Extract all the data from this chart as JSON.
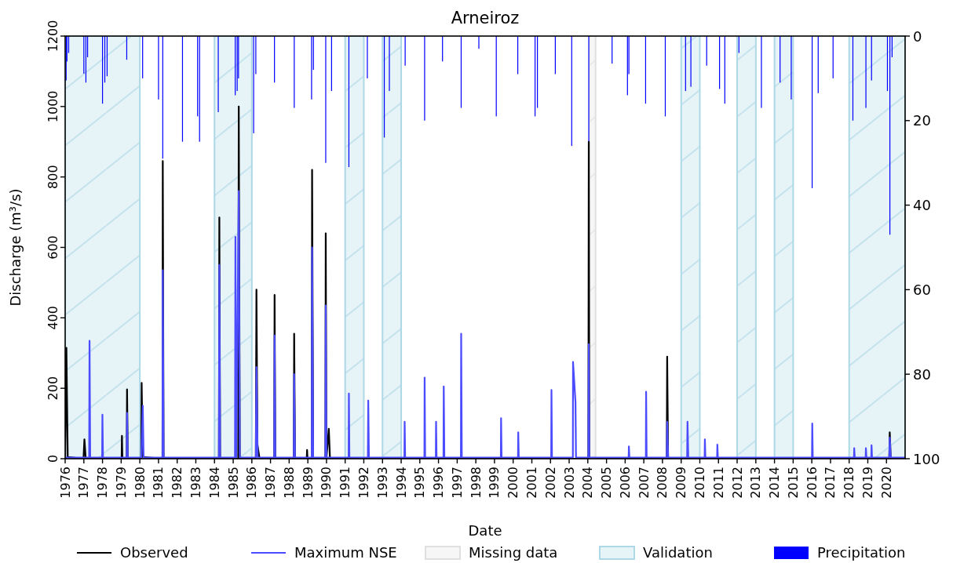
{
  "chart_data": {
    "type": "line",
    "title": "Arneiroz",
    "xlabel": "Date",
    "ylabel": "Discharge (m³/s)",
    "xlim": [
      "1976-01-01",
      "2020-12-31"
    ],
    "xticks": [
      {
        "value": "1976-01-01",
        "label": "1976"
      },
      {
        "value": "1977-01-01",
        "label": "1977"
      },
      {
        "value": "1978-01-01",
        "label": "1978"
      },
      {
        "value": "1979-01-01",
        "label": "1979"
      },
      {
        "value": "1980-01-01",
        "label": "1980"
      },
      {
        "value": "1981-01-01",
        "label": "1981"
      },
      {
        "value": "1982-01-01",
        "label": "1982"
      },
      {
        "value": "1983-01-01",
        "label": "1983"
      },
      {
        "value": "1984-01-01",
        "label": "1984"
      },
      {
        "value": "1985-01-01",
        "label": "1985"
      },
      {
        "value": "1986-01-01",
        "label": "1986"
      },
      {
        "value": "1987-01-01",
        "label": "1987"
      },
      {
        "value": "1988-01-01",
        "label": "1988"
      },
      {
        "value": "1989-01-01",
        "label": "1989"
      },
      {
        "value": "1990-01-01",
        "label": "1990"
      },
      {
        "value": "1991-01-01",
        "label": "1991"
      },
      {
        "value": "1992-01-01",
        "label": "1992"
      },
      {
        "value": "1993-01-01",
        "label": "1993"
      },
      {
        "value": "1994-01-01",
        "label": "1994"
      },
      {
        "value": "1995-01-01",
        "label": "1995"
      },
      {
        "value": "1996-01-01",
        "label": "1996"
      },
      {
        "value": "1997-01-01",
        "label": "1997"
      },
      {
        "value": "1998-01-01",
        "label": "1998"
      },
      {
        "value": "1999-01-01",
        "label": "1999"
      },
      {
        "value": "2000-01-01",
        "label": "2000"
      },
      {
        "value": "2001-01-01",
        "label": "2001"
      },
      {
        "value": "2002-01-01",
        "label": "2002"
      },
      {
        "value": "2003-01-01",
        "label": "2003"
      },
      {
        "value": "2004-01-01",
        "label": "2004"
      },
      {
        "value": "2005-01-01",
        "label": "2005"
      },
      {
        "value": "2006-01-01",
        "label": "2006"
      },
      {
        "value": "2007-01-01",
        "label": "2007"
      },
      {
        "value": "2008-01-01",
        "label": "2008"
      },
      {
        "value": "2009-01-01",
        "label": "2009"
      },
      {
        "value": "2010-01-01",
        "label": "2010"
      },
      {
        "value": "2011-01-01",
        "label": "2011"
      },
      {
        "value": "2012-01-01",
        "label": "2012"
      },
      {
        "value": "2013-01-01",
        "label": "2013"
      },
      {
        "value": "2014-01-01",
        "label": "2014"
      },
      {
        "value": "2015-01-01",
        "label": "2015"
      },
      {
        "value": "2016-01-01",
        "label": "2016"
      },
      {
        "value": "2017-01-01",
        "label": "2017"
      },
      {
        "value": "2018-01-01",
        "label": "2018"
      },
      {
        "value": "2019-01-01",
        "label": "2019"
      },
      {
        "value": "2020-01-01",
        "label": "2020"
      }
    ],
    "ylim": [
      0,
      1200
    ],
    "yticks": [
      0,
      200,
      400,
      600,
      800,
      1000,
      1200
    ],
    "y2lim": [
      100,
      0
    ],
    "y2ticks": [
      0,
      20,
      40,
      60,
      80,
      100
    ],
    "legend": "bottom",
    "bands": [
      {
        "axis": "x",
        "from": "2004-02-01",
        "to": "2004-06-01",
        "label": "Missing data",
        "color": "#e0e0e0"
      },
      {
        "axis": "x",
        "from": "1976-01-01",
        "to": "1980-01-01",
        "label": "Validation",
        "color": "#add8e6"
      },
      {
        "axis": "x",
        "from": "1984-01-01",
        "to": "1986-01-01",
        "color": "#add8e6"
      },
      {
        "axis": "x",
        "from": "1991-01-01",
        "to": "1992-01-01",
        "color": "#add8e6"
      },
      {
        "axis": "x",
        "from": "1993-01-01",
        "to": "1994-01-01",
        "color": "#add8e6"
      },
      {
        "axis": "x",
        "from": "2009-01-01",
        "to": "2010-01-01",
        "color": "#add8e6"
      },
      {
        "axis": "x",
        "from": "2012-01-01",
        "to": "2013-01-01",
        "color": "#add8e6"
      },
      {
        "axis": "x",
        "from": "2014-01-01",
        "to": "2015-01-01",
        "color": "#add8e6"
      },
      {
        "axis": "x",
        "from": "2018-01-01",
        "to": "2020-12-31",
        "color": "#add8e6"
      }
    ],
    "series": [
      {
        "name": "Precipitation",
        "type": "bar",
        "axis": "y2",
        "color": "#0000ff",
        "x": [
          "1976-01-20",
          "1976-02-05",
          "1976-03-10",
          "1977-01-01",
          "1977-02-10",
          "1977-03-15",
          "1978-01-01",
          "1978-02-15",
          "1978-04-01",
          "1979-04-20",
          "1980-02-25",
          "1981-01-01",
          "1981-03-25",
          "1982-04-15",
          "1983-02-05",
          "1983-03-15",
          "1984-03-15",
          "1985-02-10",
          "1985-03-20",
          "1985-04-15",
          "1986-02-05",
          "1986-03-20",
          "1987-03-20",
          "1988-04-10",
          "1989-03-15",
          "1989-04-20",
          "1989-12-17",
          "1990-04-10",
          "1991-03-15",
          "1992-03-10",
          "1993-02-05",
          "1993-05-15",
          "1994-03-20",
          "1995-04-05",
          "1996-03-20",
          "1997-03-20",
          "1998-03-01",
          "1999-02-05",
          "2000-04-01",
          "2001-03-05",
          "2001-04-20",
          "2002-04-05",
          "2003-02-20",
          "2004-01-20",
          "2005-04-20",
          "2006-02-15",
          "2006-03-15",
          "2007-02-05",
          "2008-02-25",
          "2009-03-28",
          "2009-07-10",
          "2010-05-15",
          "2011-01-22",
          "2011-05-05",
          "2012-02-05",
          "2013-04-20",
          "2014-04-20",
          "2014-11-25",
          "2016-01-08",
          "2016-05-05",
          "2017-02-20",
          "2018-03-15",
          "2018-11-25",
          "2019-03-15",
          "2020-01-20",
          "2020-03-08",
          "2020-04-20"
        ],
        "values": [
          10.5,
          6,
          4,
          8.9,
          11,
          5,
          16,
          11,
          9.5,
          5.6,
          10,
          15,
          29,
          25,
          19,
          25,
          18,
          14,
          13,
          10,
          23,
          9,
          11,
          17,
          15,
          8,
          30,
          13,
          31,
          10,
          24,
          13,
          7,
          20,
          6,
          17,
          3,
          19,
          9,
          19,
          17,
          9,
          26,
          25,
          6.5,
          14,
          9,
          16,
          19,
          13,
          12,
          7,
          12.5,
          16,
          4,
          17,
          11,
          15,
          36,
          13.5,
          10,
          20,
          17,
          10.5,
          13,
          47,
          5
        ]
      },
      {
        "name": "Observed",
        "color": "#000000",
        "x": [
          "1976-01-01",
          "1976-01-25",
          "1976-02-20",
          "1976-12-25",
          "1977-01-12",
          "1977-02-05",
          "1979-01-10",
          "1979-01-16",
          "1979-01-25",
          "1979-04-20",
          "1979-04-26",
          "1979-05-10",
          "1980-01-28",
          "1980-02-06",
          "1980-02-25",
          "1981-03-20",
          "1981-03-25",
          "1981-04-10",
          "1984-03-28",
          "1984-04-05",
          "1984-04-20",
          "1985-04-10",
          "1985-04-20",
          "1985-05-10",
          "1986-03-20",
          "1986-04-01",
          "1986-04-20",
          "1986-06-01",
          "1987-03-15",
          "1987-03-22",
          "1987-04-05",
          "1988-04-01",
          "1988-04-08",
          "1988-04-25",
          "1988-12-10",
          "1988-12-17",
          "1988-12-25",
          "1989-03-18",
          "1989-03-25",
          "1989-04-15",
          "1989-12-10",
          "1989-12-17",
          "1989-12-30",
          "1990-02-15",
          "1990-03-10",
          "2004-01-12",
          "2004-01-20",
          "2004-01-30",
          "2004-03-01",
          "2004-06-01",
          "2008-03-25",
          "2008-04-02",
          "2008-04-20",
          "2020-02-25",
          "2020-03-05",
          "2020-03-25",
          "2020-12-31"
        ],
        "values": [
          0,
          315,
          5,
          0,
          55,
          2,
          0,
          65,
          0,
          0,
          197,
          0,
          0,
          215,
          5,
          0,
          845,
          0,
          0,
          685,
          0,
          0,
          1000,
          0,
          0,
          480,
          40,
          0,
          0,
          465,
          0,
          0,
          355,
          0,
          0,
          25,
          0,
          0,
          820,
          0,
          0,
          640,
          0,
          85,
          0,
          0,
          900,
          0,
          null,
          0,
          0,
          290,
          0,
          0,
          75,
          0,
          0
        ]
      },
      {
        "name": "Maximum NSE",
        "color": "#4b4bff",
        "x": [
          "1976-01-01",
          "1977-04-15",
          "1977-04-22",
          "1977-05-05",
          "1977-12-25",
          "1977-12-30",
          "1978-01-10",
          "1979-04-20",
          "1979-04-26",
          "1979-05-10",
          "1980-01-30",
          "1980-02-28",
          "1980-03-15",
          "1981-03-20",
          "1981-03-25",
          "1981-04-10",
          "1984-03-28",
          "1984-04-05",
          "1984-04-20",
          "1985-02-05",
          "1985-02-14",
          "1985-03-01",
          "1985-04-20",
          "1985-05-10",
          "1986-03-20",
          "1986-04-01",
          "1986-04-25",
          "1987-03-15",
          "1987-03-22",
          "1987-04-05",
          "1988-04-01",
          "1988-04-08",
          "1988-04-25",
          "1989-03-18",
          "1989-03-25",
          "1989-04-15",
          "1989-12-10",
          "1989-12-17",
          "1989-12-30",
          "1991-03-10",
          "1991-03-15",
          "1991-03-25",
          "1992-03-20",
          "1992-03-28",
          "1992-04-10",
          "1994-03-05",
          "1994-03-10",
          "1994-03-20",
          "1995-04-01",
          "1995-04-05",
          "1995-04-15",
          "1995-11-10",
          "1995-11-15",
          "1995-11-25",
          "1996-04-08",
          "1996-04-13",
          "1996-04-25",
          "1997-03-15",
          "1997-03-20",
          "1997-04-01",
          "1999-05-05",
          "1999-05-10",
          "1999-05-20",
          "2000-04-05",
          "2000-04-10",
          "2000-04-20",
          "2002-01-15",
          "2002-01-20",
          "2002-01-30",
          "2003-03-15",
          "2003-03-18",
          "2003-05-05",
          "2003-05-15",
          "2004-01-12",
          "2004-01-20",
          "2004-01-30",
          "2006-03-10",
          "2006-03-15",
          "2006-03-25",
          "2007-02-10",
          "2007-02-15",
          "2007-02-25",
          "2008-03-25",
          "2008-04-02",
          "2008-04-20",
          "2009-04-28",
          "2009-05-05",
          "2009-05-20",
          "2010-04-05",
          "2010-04-10",
          "2010-04-20",
          "2010-12-05",
          "2010-12-10",
          "2010-12-20",
          "2016-01-05",
          "2016-01-10",
          "2016-01-20",
          "2018-04-05",
          "2018-04-10",
          "2018-04-20",
          "2018-11-20",
          "2018-11-25",
          "2018-12-05",
          "2019-03-10",
          "2019-03-15",
          "2019-03-25",
          "2020-02-25",
          "2020-03-05",
          "2020-03-25",
          "2020-12-31"
        ],
        "values": [
          3,
          3,
          335,
          3,
          3,
          125,
          3,
          3,
          130,
          3,
          3,
          150,
          3,
          3,
          535,
          3,
          3,
          550,
          3,
          3,
          630,
          3,
          760,
          3,
          3,
          260,
          3,
          3,
          350,
          3,
          3,
          240,
          3,
          3,
          600,
          3,
          3,
          435,
          3,
          3,
          185,
          3,
          3,
          165,
          3,
          3,
          105,
          3,
          3,
          230,
          3,
          3,
          105,
          3,
          3,
          205,
          3,
          3,
          355,
          3,
          3,
          115,
          3,
          3,
          75,
          3,
          3,
          195,
          3,
          3,
          275,
          160,
          3,
          3,
          325,
          3,
          3,
          35,
          3,
          3,
          190,
          3,
          3,
          105,
          3,
          3,
          105,
          3,
          3,
          55,
          3,
          3,
          40,
          3,
          3,
          100,
          3,
          3,
          30,
          3,
          3,
          30,
          3,
          3,
          38,
          3,
          3,
          60,
          3,
          3
        ]
      }
    ]
  }
}
